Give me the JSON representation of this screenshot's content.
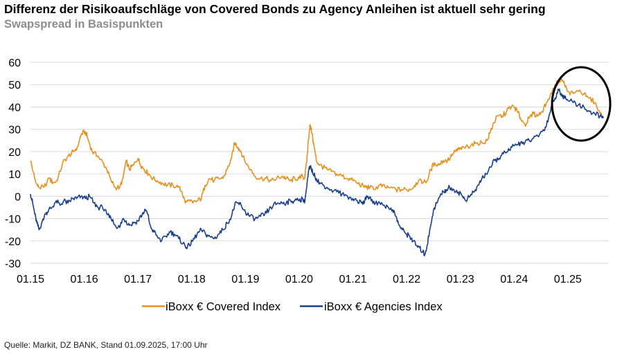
{
  "chart_data": {
    "type": "line",
    "title": "Differenz der Risikoaufschläge von Covered Bonds zu Agency Anleihen ist aktuell sehr gering",
    "subtitle": "Swapspread in Basispunkten",
    "x_tick_labels": [
      "01.15",
      "01.16",
      "01.17",
      "01.18",
      "01.19",
      "01.20",
      "01.21",
      "01.22",
      "01.23",
      "01.24",
      "01.25"
    ],
    "y_tick_labels": [
      "60",
      "50",
      "40",
      "30",
      "20",
      "10",
      "0",
      "-10",
      "-20",
      "-30"
    ],
    "ylim": [
      -30,
      60
    ],
    "xlim": [
      2015.0,
      2025.75
    ],
    "grid": "horizontal",
    "legend_position": "bottom",
    "annotation": "circle highlighting recent period 2024.9-2025.7",
    "source": "Quelle: Markit, DZ BANK, Stand 01.09.2025, 17:00 Uhr",
    "series": [
      {
        "name": "iBoxx € Covered Index",
        "color": "#E8901C",
        "points": [
          [
            2015.0,
            16
          ],
          [
            2015.05,
            11
          ],
          [
            2015.1,
            6
          ],
          [
            2015.15,
            4
          ],
          [
            2015.25,
            4
          ],
          [
            2015.35,
            8
          ],
          [
            2015.42,
            6
          ],
          [
            2015.5,
            7
          ],
          [
            2015.6,
            15
          ],
          [
            2015.7,
            18
          ],
          [
            2015.8,
            20
          ],
          [
            2015.87,
            22
          ],
          [
            2015.95,
            28
          ],
          [
            2016.02,
            29
          ],
          [
            2016.08,
            25
          ],
          [
            2016.15,
            20
          ],
          [
            2016.25,
            18
          ],
          [
            2016.35,
            15
          ],
          [
            2016.42,
            12
          ],
          [
            2016.5,
            7
          ],
          [
            2016.58,
            4
          ],
          [
            2016.66,
            4
          ],
          [
            2016.72,
            8
          ],
          [
            2016.78,
            16
          ],
          [
            2016.84,
            12
          ],
          [
            2016.92,
            14
          ],
          [
            2017.0,
            17
          ],
          [
            2017.05,
            14
          ],
          [
            2017.12,
            12
          ],
          [
            2017.2,
            10
          ],
          [
            2017.28,
            8
          ],
          [
            2017.36,
            7
          ],
          [
            2017.45,
            6
          ],
          [
            2017.55,
            5
          ],
          [
            2017.65,
            5
          ],
          [
            2017.75,
            4
          ],
          [
            2017.82,
            2
          ],
          [
            2017.88,
            -3
          ],
          [
            2017.94,
            -2
          ],
          [
            2018.02,
            -3
          ],
          [
            2018.1,
            -2
          ],
          [
            2018.18,
            -1
          ],
          [
            2018.25,
            5
          ],
          [
            2018.33,
            8
          ],
          [
            2018.42,
            7
          ],
          [
            2018.5,
            8
          ],
          [
            2018.58,
            8
          ],
          [
            2018.66,
            12
          ],
          [
            2018.74,
            17
          ],
          [
            2018.8,
            24
          ],
          [
            2018.86,
            22
          ],
          [
            2018.92,
            20
          ],
          [
            2019.0,
            15
          ],
          [
            2019.1,
            12
          ],
          [
            2019.18,
            9
          ],
          [
            2019.28,
            8
          ],
          [
            2019.38,
            8
          ],
          [
            2019.48,
            7
          ],
          [
            2019.58,
            8
          ],
          [
            2019.68,
            9
          ],
          [
            2019.76,
            8
          ],
          [
            2019.84,
            7
          ],
          [
            2019.92,
            8
          ],
          [
            2020.0,
            8
          ],
          [
            2020.06,
            9
          ],
          [
            2020.1,
            8
          ],
          [
            2020.14,
            15
          ],
          [
            2020.17,
            25
          ],
          [
            2020.2,
            32
          ],
          [
            2020.24,
            28
          ],
          [
            2020.28,
            22
          ],
          [
            2020.32,
            16
          ],
          [
            2020.38,
            14
          ],
          [
            2020.45,
            13
          ],
          [
            2020.52,
            12
          ],
          [
            2020.6,
            11
          ],
          [
            2020.7,
            10
          ],
          [
            2020.8,
            9
          ],
          [
            2020.9,
            8
          ],
          [
            2021.0,
            7
          ],
          [
            2021.08,
            6
          ],
          [
            2021.16,
            5
          ],
          [
            2021.24,
            4
          ],
          [
            2021.32,
            4
          ],
          [
            2021.4,
            3
          ],
          [
            2021.5,
            5
          ],
          [
            2021.6,
            4
          ],
          [
            2021.7,
            4
          ],
          [
            2021.8,
            3
          ],
          [
            2021.9,
            3
          ],
          [
            2022.0,
            3
          ],
          [
            2022.08,
            3
          ],
          [
            2022.15,
            5
          ],
          [
            2022.22,
            7
          ],
          [
            2022.3,
            6
          ],
          [
            2022.38,
            7
          ],
          [
            2022.45,
            12
          ],
          [
            2022.52,
            15
          ],
          [
            2022.6,
            14
          ],
          [
            2022.68,
            16
          ],
          [
            2022.76,
            16
          ],
          [
            2022.84,
            18
          ],
          [
            2022.9,
            20
          ],
          [
            2022.96,
            21
          ],
          [
            2023.02,
            21
          ],
          [
            2023.1,
            22
          ],
          [
            2023.2,
            23
          ],
          [
            2023.3,
            24
          ],
          [
            2023.4,
            24
          ],
          [
            2023.5,
            25
          ],
          [
            2023.56,
            29
          ],
          [
            2023.62,
            33
          ],
          [
            2023.7,
            36
          ],
          [
            2023.78,
            36
          ],
          [
            2023.86,
            38
          ],
          [
            2023.92,
            40
          ],
          [
            2024.0,
            40
          ],
          [
            2024.06,
            38
          ],
          [
            2024.12,
            35
          ],
          [
            2024.2,
            32
          ],
          [
            2024.28,
            35
          ],
          [
            2024.36,
            37
          ],
          [
            2024.44,
            36
          ],
          [
            2024.52,
            38
          ],
          [
            2024.6,
            42
          ],
          [
            2024.7,
            46
          ],
          [
            2024.76,
            50
          ],
          [
            2024.82,
            51
          ],
          [
            2024.88,
            53
          ],
          [
            2024.94,
            50
          ],
          [
            2025.0,
            47
          ],
          [
            2025.1,
            46
          ],
          [
            2025.2,
            47
          ],
          [
            2025.3,
            46
          ],
          [
            2025.4,
            44
          ],
          [
            2025.5,
            42
          ],
          [
            2025.6,
            37
          ],
          [
            2025.66,
            36
          ]
        ]
      },
      {
        "name": "iBoxx € Agencies Index",
        "color": "#173E8C",
        "points": [
          [
            2015.0,
            1
          ],
          [
            2015.04,
            -3
          ],
          [
            2015.08,
            -8
          ],
          [
            2015.12,
            -12
          ],
          [
            2015.16,
            -15
          ],
          [
            2015.22,
            -11
          ],
          [
            2015.28,
            -8
          ],
          [
            2015.34,
            -6
          ],
          [
            2015.4,
            -5
          ],
          [
            2015.48,
            -2
          ],
          [
            2015.55,
            -4
          ],
          [
            2015.62,
            -2
          ],
          [
            2015.7,
            -3
          ],
          [
            2015.78,
            -1
          ],
          [
            2015.86,
            -1
          ],
          [
            2015.94,
            0
          ],
          [
            2016.02,
            -1
          ],
          [
            2016.1,
            0
          ],
          [
            2016.18,
            -3
          ],
          [
            2016.26,
            -5
          ],
          [
            2016.34,
            -5
          ],
          [
            2016.42,
            -8
          ],
          [
            2016.5,
            -10
          ],
          [
            2016.58,
            -13
          ],
          [
            2016.66,
            -14
          ],
          [
            2016.72,
            -10
          ],
          [
            2016.78,
            -11
          ],
          [
            2016.84,
            -13
          ],
          [
            2016.92,
            -12
          ],
          [
            2017.0,
            -11
          ],
          [
            2017.08,
            -8
          ],
          [
            2017.14,
            -6
          ],
          [
            2017.18,
            -8
          ],
          [
            2017.24,
            -14
          ],
          [
            2017.3,
            -16
          ],
          [
            2017.36,
            -18
          ],
          [
            2017.44,
            -20
          ],
          [
            2017.52,
            -18
          ],
          [
            2017.6,
            -16
          ],
          [
            2017.68,
            -17
          ],
          [
            2017.76,
            -19
          ],
          [
            2017.84,
            -21
          ],
          [
            2017.9,
            -23
          ],
          [
            2017.96,
            -22
          ],
          [
            2018.02,
            -20
          ],
          [
            2018.1,
            -17
          ],
          [
            2018.18,
            -15
          ],
          [
            2018.26,
            -17
          ],
          [
            2018.34,
            -18
          ],
          [
            2018.42,
            -19
          ],
          [
            2018.5,
            -17
          ],
          [
            2018.58,
            -15
          ],
          [
            2018.66,
            -12
          ],
          [
            2018.74,
            -9
          ],
          [
            2018.8,
            -4
          ],
          [
            2018.86,
            -3
          ],
          [
            2018.92,
            -4
          ],
          [
            2019.0,
            -7
          ],
          [
            2019.08,
            -9
          ],
          [
            2019.18,
            -10
          ],
          [
            2019.28,
            -9
          ],
          [
            2019.36,
            -8
          ],
          [
            2019.44,
            -6
          ],
          [
            2019.52,
            -4
          ],
          [
            2019.6,
            -3
          ],
          [
            2019.68,
            -3
          ],
          [
            2019.76,
            -3
          ],
          [
            2019.84,
            -2
          ],
          [
            2019.92,
            -2
          ],
          [
            2020.0,
            -2
          ],
          [
            2020.06,
            -1
          ],
          [
            2020.1,
            -3
          ],
          [
            2020.14,
            4
          ],
          [
            2020.18,
            12
          ],
          [
            2020.22,
            13
          ],
          [
            2020.26,
            10
          ],
          [
            2020.32,
            8
          ],
          [
            2020.38,
            6
          ],
          [
            2020.45,
            5
          ],
          [
            2020.52,
            4
          ],
          [
            2020.6,
            3
          ],
          [
            2020.7,
            2
          ],
          [
            2020.8,
            1
          ],
          [
            2020.9,
            0
          ],
          [
            2021.0,
            -1
          ],
          [
            2021.08,
            -2
          ],
          [
            2021.16,
            -3
          ],
          [
            2021.22,
            -2
          ],
          [
            2021.28,
            0
          ],
          [
            2021.34,
            -2
          ],
          [
            2021.42,
            -3
          ],
          [
            2021.5,
            -3
          ],
          [
            2021.58,
            -4
          ],
          [
            2021.66,
            -5
          ],
          [
            2021.74,
            -6
          ],
          [
            2021.8,
            -9
          ],
          [
            2021.86,
            -13
          ],
          [
            2021.92,
            -15
          ],
          [
            2022.0,
            -17
          ],
          [
            2022.06,
            -18
          ],
          [
            2022.12,
            -20
          ],
          [
            2022.18,
            -22
          ],
          [
            2022.24,
            -23
          ],
          [
            2022.3,
            -25
          ],
          [
            2022.34,
            -26
          ],
          [
            2022.38,
            -22
          ],
          [
            2022.44,
            -14
          ],
          [
            2022.5,
            -6
          ],
          [
            2022.56,
            -3
          ],
          [
            2022.62,
            0
          ],
          [
            2022.68,
            2
          ],
          [
            2022.74,
            3
          ],
          [
            2022.8,
            4
          ],
          [
            2022.88,
            3
          ],
          [
            2022.96,
            2
          ],
          [
            2023.04,
            0
          ],
          [
            2023.1,
            -2
          ],
          [
            2023.18,
            0
          ],
          [
            2023.26,
            2
          ],
          [
            2023.34,
            5
          ],
          [
            2023.4,
            8
          ],
          [
            2023.48,
            10
          ],
          [
            2023.56,
            13
          ],
          [
            2023.64,
            16
          ],
          [
            2023.72,
            17
          ],
          [
            2023.8,
            19
          ],
          [
            2023.88,
            20
          ],
          [
            2023.96,
            22
          ],
          [
            2024.04,
            23
          ],
          [
            2024.12,
            24
          ],
          [
            2024.2,
            24
          ],
          [
            2024.28,
            25
          ],
          [
            2024.36,
            26
          ],
          [
            2024.44,
            27
          ],
          [
            2024.52,
            29
          ],
          [
            2024.58,
            31
          ],
          [
            2024.64,
            35
          ],
          [
            2024.7,
            41
          ],
          [
            2024.76,
            44
          ],
          [
            2024.82,
            48
          ],
          [
            2024.88,
            46
          ],
          [
            2024.94,
            44
          ],
          [
            2025.0,
            43
          ],
          [
            2025.1,
            42
          ],
          [
            2025.2,
            41
          ],
          [
            2025.3,
            40
          ],
          [
            2025.4,
            38
          ],
          [
            2025.5,
            37
          ],
          [
            2025.6,
            36
          ],
          [
            2025.66,
            35
          ]
        ]
      }
    ]
  }
}
